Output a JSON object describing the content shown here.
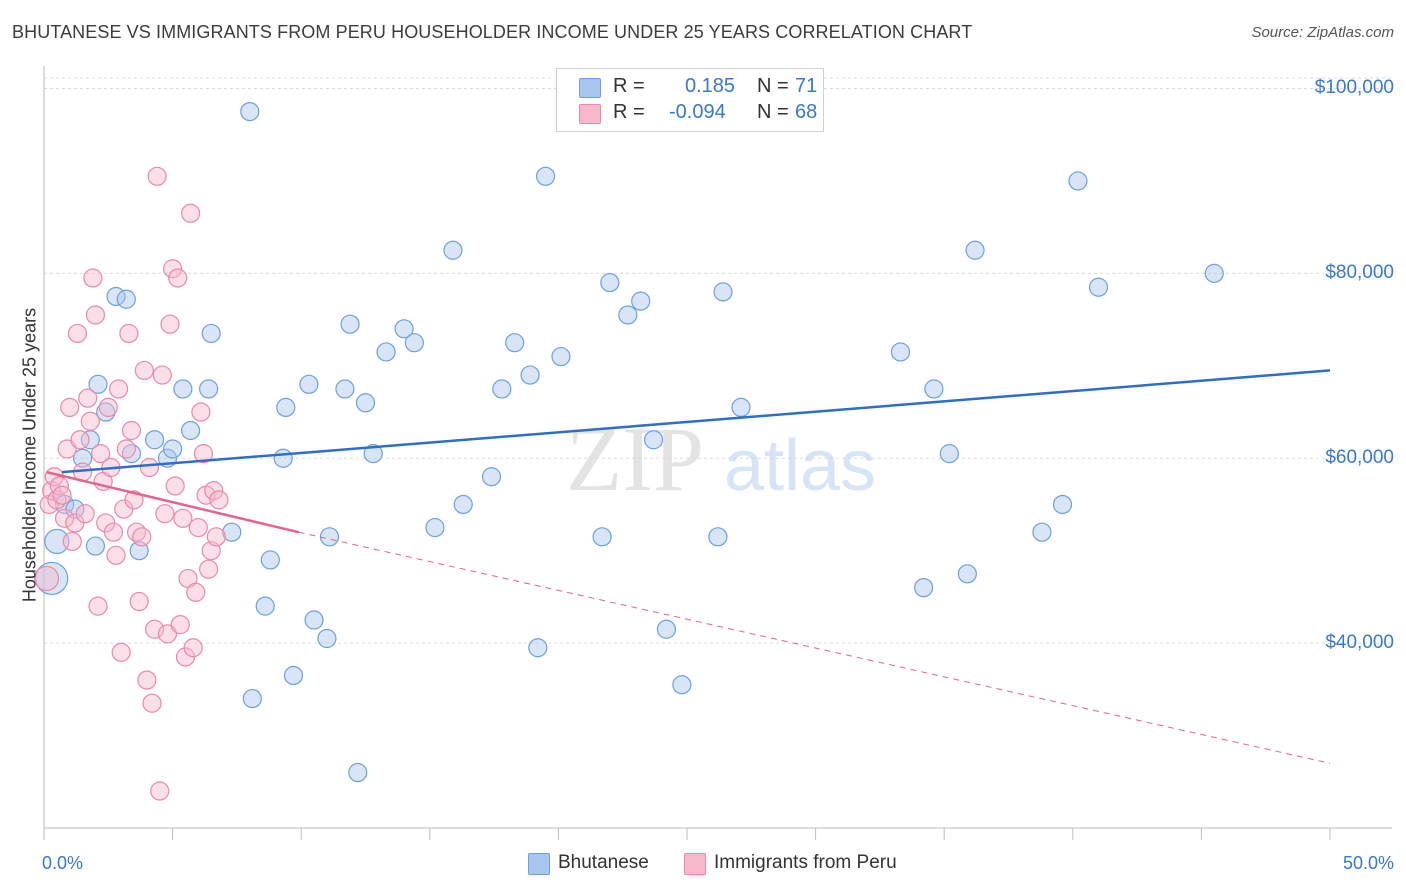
{
  "title": "BHUTANESE VS IMMIGRANTS FROM PERU HOUSEHOLDER INCOME UNDER 25 YEARS CORRELATION CHART",
  "source": "Source: ZipAtlas.com",
  "watermark": {
    "zip": "ZIP",
    "atlas": "atlas"
  },
  "legend": {
    "r_label": "R =",
    "n_label": "N =",
    "rows": [
      {
        "r": "0.185",
        "n": "71",
        "color": "#a9c6ee",
        "border": "#6f9fdc"
      },
      {
        "r": "-0.094",
        "n": "68",
        "color": "#f7b8cb",
        "border": "#e98aa8"
      }
    ]
  },
  "bottom_legend": [
    {
      "label": "Bhutanese",
      "color": "#a9c6ee",
      "border": "#6f9fdc"
    },
    {
      "label": "Immigrants from Peru",
      "color": "#f7b8cb",
      "border": "#e98aa8"
    }
  ],
  "axes": {
    "ylabel": "Householder Income Under 25 years",
    "x_min_label": "0.0%",
    "x_max_label": "50.0%",
    "y_ticks": [
      {
        "value": 40000,
        "label": "$40,000"
      },
      {
        "value": 60000,
        "label": "$60,000"
      },
      {
        "value": 80000,
        "label": "$80,000"
      },
      {
        "value": 100000,
        "label": "$100,000"
      }
    ]
  },
  "chart_data": {
    "type": "scatter",
    "xlim": [
      0,
      50
    ],
    "ylim": [
      20000,
      102000
    ],
    "grid": true,
    "series": [
      {
        "name": "Bhutanese",
        "color": "#a9c6ee",
        "stroke": "#6f9fdc",
        "trend": {
          "x0": 0.7,
          "y0": 58500,
          "x1": 50,
          "y1": 69500,
          "color": "#2d6ec8"
        },
        "points": [
          [
            0.3,
            47000,
            16
          ],
          [
            0.5,
            51000,
            12
          ],
          [
            0.8,
            55000,
            9
          ],
          [
            1.2,
            54500,
            9
          ],
          [
            1.5,
            60000,
            9
          ],
          [
            1.8,
            62000,
            9
          ],
          [
            2.1,
            68000,
            9
          ],
          [
            2.4,
            65000,
            9
          ],
          [
            2.8,
            77500,
            9
          ],
          [
            3.2,
            77200,
            9
          ],
          [
            3.4,
            60500,
            9
          ],
          [
            3.7,
            50000,
            9
          ],
          [
            4.3,
            62000,
            9
          ],
          [
            4.8,
            60000,
            9
          ],
          [
            5.0,
            61000,
            9
          ],
          [
            5.4,
            67500,
            9
          ],
          [
            5.7,
            63000,
            9
          ],
          [
            6.4,
            67500,
            9
          ],
          [
            6.5,
            73500,
            9
          ],
          [
            7.3,
            52000,
            9
          ],
          [
            8.0,
            97500,
            9
          ],
          [
            8.1,
            34000,
            9
          ],
          [
            8.6,
            44000,
            9
          ],
          [
            8.8,
            49000,
            9
          ],
          [
            9.3,
            60000,
            9
          ],
          [
            9.4,
            65500,
            9
          ],
          [
            9.7,
            36500,
            9
          ],
          [
            10.3,
            68000,
            9
          ],
          [
            10.5,
            42500,
            9
          ],
          [
            11.0,
            40500,
            9
          ],
          [
            11.1,
            51500,
            9
          ],
          [
            11.7,
            67500,
            9
          ],
          [
            11.9,
            74500,
            9
          ],
          [
            12.2,
            26000,
            9
          ],
          [
            12.5,
            66000,
            9
          ],
          [
            12.8,
            60500,
            9
          ],
          [
            13.3,
            71500,
            9
          ],
          [
            14.0,
            74000,
            9
          ],
          [
            14.4,
            72500,
            9
          ],
          [
            15.2,
            52500,
            9
          ],
          [
            15.9,
            82500,
            9
          ],
          [
            16.3,
            55000,
            9
          ],
          [
            17.4,
            58000,
            9
          ],
          [
            17.8,
            67500,
            9
          ],
          [
            18.3,
            72500,
            9
          ],
          [
            18.9,
            69000,
            9
          ],
          [
            19.2,
            39500,
            9
          ],
          [
            19.5,
            90500,
            9
          ],
          [
            20.1,
            71000,
            9
          ],
          [
            21.7,
            51500,
            9
          ],
          [
            22.0,
            79000,
            9
          ],
          [
            22.7,
            75500,
            9
          ],
          [
            23.2,
            77000,
            9
          ],
          [
            23.7,
            62000,
            9
          ],
          [
            24.2,
            41500,
            9
          ],
          [
            24.8,
            35500,
            9
          ],
          [
            26.2,
            51500,
            9
          ],
          [
            26.4,
            78000,
            9
          ],
          [
            27.1,
            65500,
            9
          ],
          [
            33.3,
            71500,
            9
          ],
          [
            34.2,
            46000,
            9
          ],
          [
            34.6,
            67500,
            9
          ],
          [
            35.2,
            60500,
            9
          ],
          [
            35.9,
            47500,
            9
          ],
          [
            36.2,
            82500,
            9
          ],
          [
            38.8,
            52000,
            9
          ],
          [
            39.6,
            55000,
            9
          ],
          [
            40.2,
            90000,
            9
          ],
          [
            41.0,
            78500,
            9
          ],
          [
            45.5,
            80000,
            9
          ],
          [
            2.0,
            50500,
            9
          ]
        ]
      },
      {
        "name": "Immigrants from Peru",
        "color": "#f7b8cb",
        "stroke": "#e98aa8",
        "trend": {
          "x0": 0.1,
          "y0": 58500,
          "x1": 9.9,
          "y1": 52000,
          "color": "#e0668f",
          "dash_to": {
            "x": 50,
            "y": 27000
          }
        },
        "points": [
          [
            0.1,
            47000,
            12
          ],
          [
            0.2,
            55000,
            9
          ],
          [
            0.3,
            56500,
            9
          ],
          [
            0.4,
            58000,
            9
          ],
          [
            0.5,
            55500,
            9
          ],
          [
            0.6,
            57000,
            9
          ],
          [
            0.7,
            56000,
            9
          ],
          [
            0.8,
            53500,
            9
          ],
          [
            0.9,
            61000,
            9
          ],
          [
            1.0,
            65500,
            9
          ],
          [
            1.1,
            51000,
            9
          ],
          [
            1.2,
            53000,
            9
          ],
          [
            1.3,
            73500,
            9
          ],
          [
            1.4,
            62000,
            9
          ],
          [
            1.5,
            58500,
            9
          ],
          [
            1.6,
            54000,
            9
          ],
          [
            1.7,
            66500,
            9
          ],
          [
            1.8,
            64000,
            9
          ],
          [
            1.9,
            79500,
            9
          ],
          [
            2.0,
            75500,
            9
          ],
          [
            2.1,
            44000,
            9
          ],
          [
            2.2,
            60500,
            9
          ],
          [
            2.3,
            57500,
            9
          ],
          [
            2.4,
            53000,
            9
          ],
          [
            2.5,
            65500,
            9
          ],
          [
            2.6,
            59000,
            9
          ],
          [
            2.7,
            52000,
            9
          ],
          [
            2.8,
            49500,
            9
          ],
          [
            2.9,
            67500,
            9
          ],
          [
            3.0,
            39000,
            9
          ],
          [
            3.1,
            54500,
            9
          ],
          [
            3.2,
            61000,
            9
          ],
          [
            3.3,
            73500,
            9
          ],
          [
            3.4,
            63000,
            9
          ],
          [
            3.5,
            55500,
            9
          ],
          [
            3.6,
            52000,
            9
          ],
          [
            3.7,
            44500,
            9
          ],
          [
            3.8,
            51500,
            9
          ],
          [
            3.9,
            69500,
            9
          ],
          [
            4.0,
            36000,
            9
          ],
          [
            4.1,
            59000,
            9
          ],
          [
            4.2,
            33500,
            9
          ],
          [
            4.3,
            41500,
            9
          ],
          [
            4.4,
            90500,
            9
          ],
          [
            4.5,
            24000,
            9
          ],
          [
            4.6,
            69000,
            9
          ],
          [
            4.7,
            54000,
            9
          ],
          [
            4.8,
            41000,
            9
          ],
          [
            4.9,
            74500,
            9
          ],
          [
            5.0,
            80500,
            9
          ],
          [
            5.1,
            57000,
            9
          ],
          [
            5.2,
            79500,
            9
          ],
          [
            5.3,
            42000,
            9
          ],
          [
            5.4,
            53500,
            9
          ],
          [
            5.5,
            38500,
            9
          ],
          [
            5.6,
            47000,
            9
          ],
          [
            5.7,
            86500,
            9
          ],
          [
            5.8,
            39500,
            9
          ],
          [
            5.9,
            45500,
            9
          ],
          [
            6.0,
            52500,
            9
          ],
          [
            6.1,
            65000,
            9
          ],
          [
            6.2,
            60500,
            9
          ],
          [
            6.3,
            56000,
            9
          ],
          [
            6.4,
            48000,
            9
          ],
          [
            6.5,
            50000,
            9
          ],
          [
            6.6,
            56500,
            9
          ],
          [
            6.7,
            51500,
            9
          ],
          [
            6.8,
            55500,
            9
          ]
        ]
      }
    ]
  }
}
